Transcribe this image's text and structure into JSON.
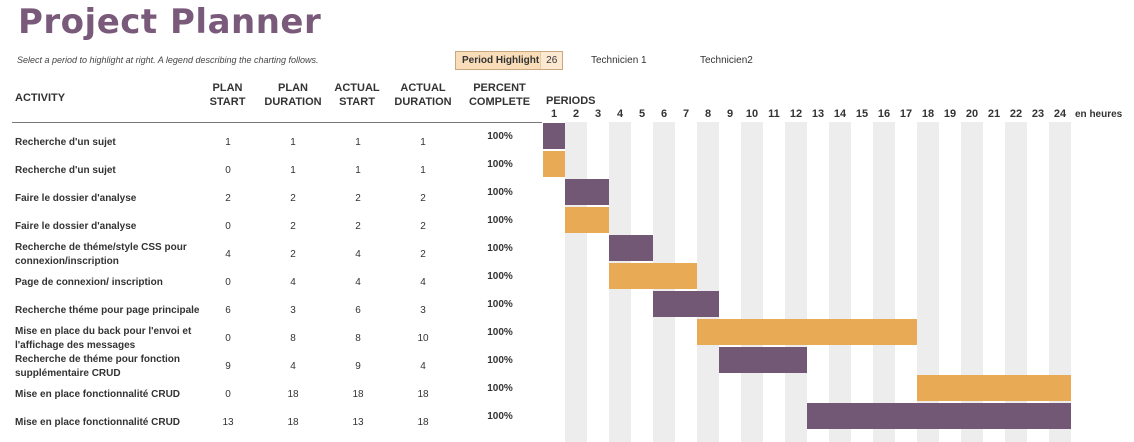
{
  "title": "Project Planner",
  "subtitle": "Select a period to highlight at right.  A legend describing the charting follows.",
  "period_highlight": {
    "label": "Period Highlight",
    "value": "26"
  },
  "legend": [
    {
      "label": "Technicien 1",
      "color": "#735875"
    },
    {
      "label": "Technicien2",
      "color": "#e8aa55"
    }
  ],
  "headers": {
    "activity": "ACTIVITY",
    "plan_start": [
      "PLAN",
      "START"
    ],
    "plan_duration": [
      "PLAN",
      "DURATION"
    ],
    "actual_start": [
      "ACTUAL",
      "START"
    ],
    "actual_duration": [
      "ACTUAL",
      "DURATION"
    ],
    "percent_complete": [
      "PERCENT",
      "COMPLETE"
    ],
    "periods": "PERIODS",
    "hours": "en heures"
  },
  "chart_data": {
    "type": "gantt",
    "periods": [
      1,
      2,
      3,
      4,
      5,
      6,
      7,
      8,
      9,
      10,
      11,
      12,
      13,
      14,
      15,
      16,
      17,
      18,
      19,
      20,
      21,
      22,
      23,
      24
    ],
    "rows": [
      {
        "activity": "Recherche d'un sujet",
        "plan_start": 1,
        "plan_duration": 1,
        "actual_start": 1,
        "actual_duration": 1,
        "percent": "100%",
        "technician": "Technicien 1",
        "bar_start": 1,
        "bar_duration": 1
      },
      {
        "activity": "Recherche d'un sujet",
        "plan_start": 0,
        "plan_duration": 1,
        "actual_start": 1,
        "actual_duration": 1,
        "percent": "100%",
        "technician": "Technicien2",
        "bar_start": 1,
        "bar_duration": 1
      },
      {
        "activity": "Faire le dossier d'analyse",
        "plan_start": 2,
        "plan_duration": 2,
        "actual_start": 2,
        "actual_duration": 2,
        "percent": "100%",
        "technician": "Technicien 1",
        "bar_start": 2,
        "bar_duration": 2
      },
      {
        "activity": "Faire le dossier d'analyse",
        "plan_start": 0,
        "plan_duration": 2,
        "actual_start": 2,
        "actual_duration": 2,
        "percent": "100%",
        "technician": "Technicien2",
        "bar_start": 2,
        "bar_duration": 2
      },
      {
        "activity": "Recherche de théme/style CSS pour connexion/inscription",
        "plan_start": 4,
        "plan_duration": 2,
        "actual_start": 4,
        "actual_duration": 2,
        "percent": "100%",
        "technician": "Technicien 1",
        "bar_start": 4,
        "bar_duration": 2
      },
      {
        "activity": "Page de connexion/ inscription",
        "plan_start": 0,
        "plan_duration": 4,
        "actual_start": 4,
        "actual_duration": 4,
        "percent": "100%",
        "technician": "Technicien2",
        "bar_start": 4,
        "bar_duration": 4
      },
      {
        "activity": "Recherche théme pour page principale",
        "plan_start": 6,
        "plan_duration": 3,
        "actual_start": 6,
        "actual_duration": 3,
        "percent": "100%",
        "technician": "Technicien 1",
        "bar_start": 6,
        "bar_duration": 3
      },
      {
        "activity": "Mise en place du back pour l'envoi et l'affichage des messages",
        "plan_start": 0,
        "plan_duration": 8,
        "actual_start": 8,
        "actual_duration": 10,
        "percent": "100%",
        "technician": "Technicien2",
        "bar_start": 8,
        "bar_duration": 10
      },
      {
        "activity": "Recherche de théme pour fonction supplémentaire CRUD",
        "plan_start": 9,
        "plan_duration": 4,
        "actual_start": 9,
        "actual_duration": 4,
        "percent": "100%",
        "technician": "Technicien 1",
        "bar_start": 9,
        "bar_duration": 4
      },
      {
        "activity": "Mise en place fonctionnalité CRUD",
        "plan_start": 0,
        "plan_duration": 18,
        "actual_start": 18,
        "actual_duration": 18,
        "percent": "100%",
        "technician": "Technicien2",
        "bar_start": 18,
        "bar_duration": 7
      },
      {
        "activity": "Mise en place fonctionnalité CRUD",
        "plan_start": 13,
        "plan_duration": 18,
        "actual_start": 13,
        "actual_duration": 18,
        "percent": "100%",
        "technician": "Technicien 1",
        "bar_start": 13,
        "bar_duration": 12
      }
    ]
  }
}
